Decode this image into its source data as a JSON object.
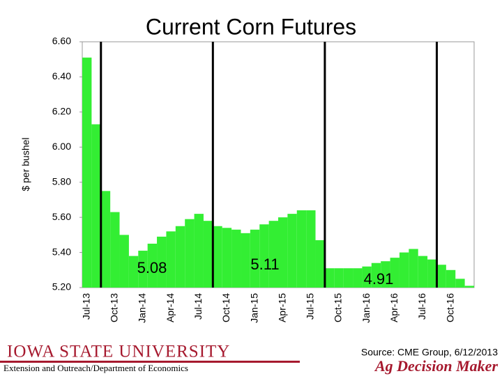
{
  "chart_data": {
    "type": "bar",
    "title": "Current Corn Futures",
    "y_label": "$ per bushel",
    "categories": [
      "Jul-13",
      null,
      null,
      "Oct-13",
      null,
      null,
      "Jan-14",
      null,
      null,
      "Apr-14",
      null,
      null,
      "Jul-14",
      null,
      null,
      "Oct-14",
      null,
      null,
      "Jan-15",
      null,
      null,
      "Apr-15",
      null,
      null,
      "Jul-15",
      null,
      null,
      "Oct-15",
      null,
      null,
      "Jan-16",
      null,
      null,
      "Apr-16",
      null,
      null,
      "Jul-16",
      null,
      null,
      "Oct-16",
      null,
      null
    ],
    "values": [
      6.51,
      6.13,
      5.75,
      5.63,
      5.5,
      5.38,
      5.41,
      5.45,
      5.49,
      5.52,
      5.55,
      5.59,
      5.62,
      5.58,
      5.55,
      5.54,
      5.53,
      5.51,
      5.53,
      5.56,
      5.58,
      5.6,
      5.62,
      5.64,
      5.64,
      5.47,
      5.31,
      5.31,
      5.31,
      5.31,
      5.32,
      5.34,
      5.35,
      5.37,
      5.4,
      5.42,
      5.38,
      5.36,
      5.33,
      5.3,
      5.25,
      5.21
    ],
    "color": "#33ee33",
    "ylim": [
      5.2,
      6.6
    ],
    "yticks": [
      {
        "value": 5.2,
        "label": "5.20"
      },
      {
        "value": 5.4,
        "label": "5.40"
      },
      {
        "value": 5.6,
        "label": "5.60"
      },
      {
        "value": 5.8,
        "label": "5.80"
      },
      {
        "value": 6.0,
        "label": "6.00"
      },
      {
        "value": 6.2,
        "label": "6.20"
      },
      {
        "value": 6.4,
        "label": "6.40"
      },
      {
        "value": 6.6,
        "label": "6.60"
      }
    ],
    "annotations": [
      "5.08",
      "5.11",
      "4.91"
    ]
  },
  "footer": {
    "university": "Iowa State University",
    "department": "Extension and Outreach/Department of Economics",
    "source": "Source: CME Group, 6/12/2013",
    "brand": "Ag Decision Maker"
  }
}
